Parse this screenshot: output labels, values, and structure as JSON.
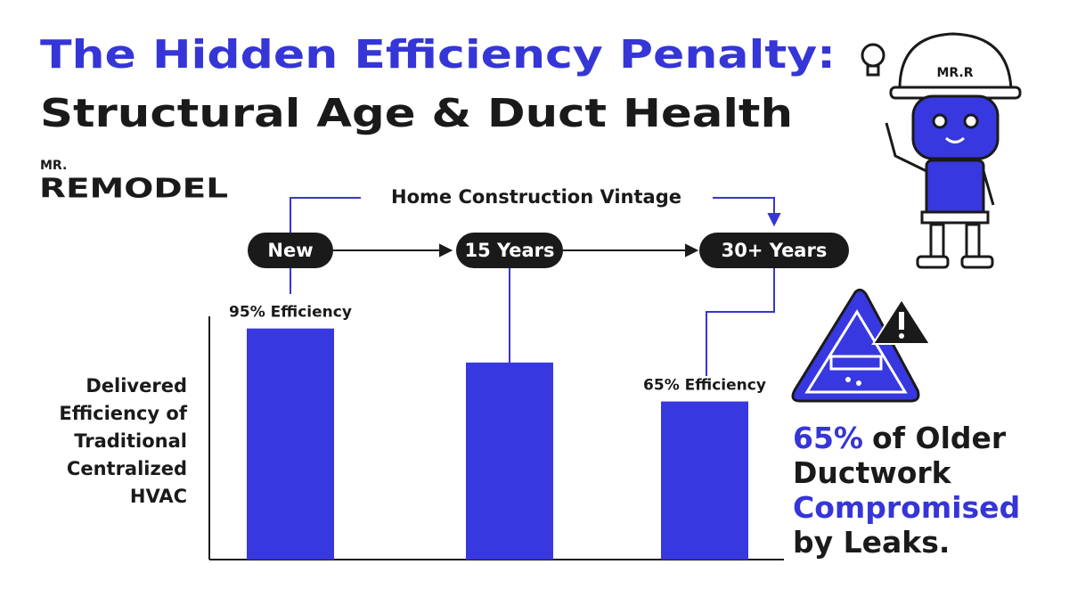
{
  "title_lines": [
    "The Hidden Efficiency Penalty:",
    "Structural Age & Duct Health"
  ],
  "logo": {
    "top": "MR.",
    "bottom": "REMODEL"
  },
  "mascot_label": "MR.R",
  "callout": {
    "lines": [
      [
        {
          "text": "65%",
          "highlight": true
        },
        {
          "text": "of Older",
          "highlight": false
        }
      ],
      [
        {
          "text": "Ductwork",
          "highlight": false
        }
      ],
      [
        {
          "text": "Compromised",
          "highlight": true
        }
      ],
      [
        {
          "text": "by Leaks.",
          "highlight": false
        }
      ]
    ],
    "highlight_color": "#3535d8"
  },
  "chart_data": {
    "type": "bar",
    "x_label": "Home Construction Vintage",
    "y_label": "Delivered Efficiency of Traditional Centralized HVAC",
    "categories": [
      "New",
      "15 Years",
      "30+ Years"
    ],
    "values": [
      95,
      81,
      65
    ],
    "value_labels": [
      "95% Efficiency",
      null,
      "65% Efficiency"
    ],
    "color": "#3838e0",
    "ylim": [
      0,
      100
    ]
  }
}
